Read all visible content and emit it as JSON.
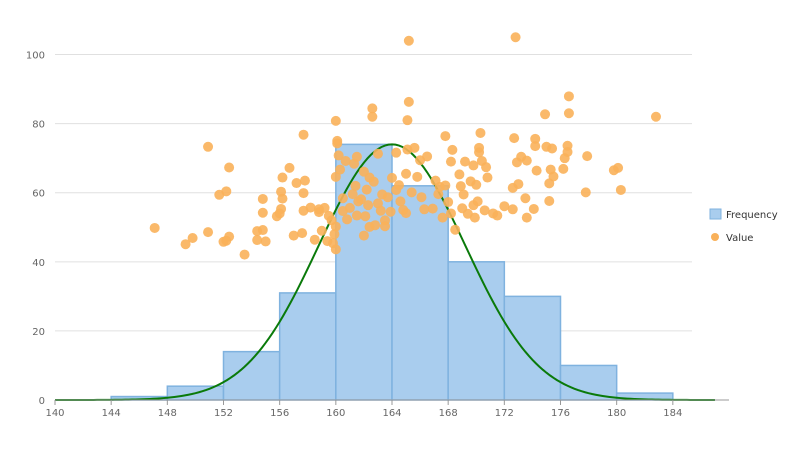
{
  "chart_data": {
    "type": "histogram",
    "title": "",
    "xlabel": "",
    "ylabel": "",
    "xlim": [
      140,
      188
    ],
    "ylim": [
      0,
      110
    ],
    "x_ticks": [
      140,
      144,
      148,
      152,
      156,
      160,
      164,
      168,
      172,
      176,
      180,
      184
    ],
    "y_ticks": [
      0,
      20,
      40,
      60,
      80,
      100
    ],
    "grid": "horizontal",
    "legend_position": "right",
    "legend": [
      {
        "label": "Frequency",
        "kind": "box"
      },
      {
        "label": "Value",
        "kind": "dot"
      }
    ],
    "colors": {
      "bar_fill": "#a9cdee",
      "bar_stroke": "#7fb2df",
      "curve": "#0a7a0a",
      "scatter": "#f9b15a",
      "grid": "#e0e0e0",
      "axis": "#999999"
    },
    "bins": [
      {
        "x0": 144,
        "x1": 148,
        "value": 1
      },
      {
        "x0": 148,
        "x1": 152,
        "value": 4
      },
      {
        "x0": 152,
        "x1": 156,
        "value": 14
      },
      {
        "x0": 156,
        "x1": 160,
        "value": 31
      },
      {
        "x0": 160,
        "x1": 164,
        "value": 74
      },
      {
        "x0": 164,
        "x1": 168,
        "value": 62
      },
      {
        "x0": 168,
        "x1": 172,
        "value": 40
      },
      {
        "x0": 172,
        "x1": 176,
        "value": 30
      },
      {
        "x0": 176,
        "x1": 180,
        "value": 10
      },
      {
        "x0": 180,
        "x1": 184,
        "value": 2
      }
    ],
    "curve": {
      "kind": "normal",
      "mean": 164,
      "sd": 5.2,
      "peak": 74,
      "x_from": 140,
      "x_to": 187
    },
    "scatter": [
      [
        147.1,
        49.8
      ],
      [
        149.3,
        45.1
      ],
      [
        149.8,
        46.9
      ],
      [
        150.9,
        73.3
      ],
      [
        150.9,
        48.6
      ],
      [
        151.7,
        59.4
      ],
      [
        152.0,
        45.8
      ],
      [
        152.2,
        60.4
      ],
      [
        152.4,
        67.3
      ],
      [
        152.4,
        47.3
      ],
      [
        152.2,
        46.1
      ],
      [
        153.5,
        42.1
      ],
      [
        154.4,
        46.3
      ],
      [
        154.4,
        48.9
      ],
      [
        154.8,
        49.2
      ],
      [
        154.8,
        54.2
      ],
      [
        154.8,
        58.2
      ],
      [
        155.0,
        45.9
      ],
      [
        155.8,
        53.2
      ],
      [
        156.0,
        54.0
      ],
      [
        156.1,
        55.3
      ],
      [
        156.2,
        64.4
      ],
      [
        156.2,
        58.3
      ],
      [
        156.1,
        60.3
      ],
      [
        156.7,
        67.2
      ],
      [
        157.0,
        47.6
      ],
      [
        157.2,
        62.8
      ],
      [
        157.6,
        48.3
      ],
      [
        157.8,
        63.5
      ],
      [
        157.7,
        76.8
      ],
      [
        157.7,
        59.9
      ],
      [
        157.7,
        54.8
      ],
      [
        158.2,
        55.7
      ],
      [
        158.5,
        46.4
      ],
      [
        158.8,
        54.4
      ],
      [
        158.8,
        55.2
      ],
      [
        159.0,
        49.0
      ],
      [
        159.2,
        55.6
      ],
      [
        159.4,
        46.0
      ],
      [
        159.5,
        53.3
      ],
      [
        159.7,
        52.0
      ],
      [
        159.8,
        45.4
      ],
      [
        159.9,
        48.0
      ],
      [
        160.0,
        43.6
      ],
      [
        160.0,
        50.2
      ],
      [
        160.0,
        64.6
      ],
      [
        160.1,
        75.0
      ],
      [
        160.1,
        74.3
      ],
      [
        160.0,
        80.8
      ],
      [
        160.2,
        70.8
      ],
      [
        160.3,
        66.7
      ],
      [
        160.5,
        58.4
      ],
      [
        160.5,
        54.7
      ],
      [
        160.7,
        69.2
      ],
      [
        160.8,
        52.3
      ],
      [
        161.0,
        55.6
      ],
      [
        161.2,
        59.6
      ],
      [
        161.3,
        68.4
      ],
      [
        161.4,
        62.0
      ],
      [
        161.5,
        53.4
      ],
      [
        161.5,
        70.4
      ],
      [
        161.6,
        57.5
      ],
      [
        161.8,
        58.1
      ],
      [
        162.0,
        66.1
      ],
      [
        162.0,
        47.6
      ],
      [
        162.1,
        53.2
      ],
      [
        162.2,
        60.9
      ],
      [
        162.3,
        56.4
      ],
      [
        162.4,
        64.4
      ],
      [
        162.4,
        50.1
      ],
      [
        162.6,
        84.4
      ],
      [
        162.6,
        82.0
      ],
      [
        162.7,
        63.2
      ],
      [
        162.8,
        50.6
      ],
      [
        163.0,
        71.3
      ],
      [
        163.0,
        56.9
      ],
      [
        163.2,
        54.8
      ],
      [
        163.3,
        59.5
      ],
      [
        163.5,
        52.0
      ],
      [
        163.5,
        50.3
      ],
      [
        163.7,
        58.7
      ],
      [
        163.9,
        54.5
      ],
      [
        164.0,
        64.3
      ],
      [
        164.3,
        60.8
      ],
      [
        164.3,
        71.6
      ],
      [
        164.5,
        62.2
      ],
      [
        164.6,
        57.5
      ],
      [
        164.8,
        55.0
      ],
      [
        165.0,
        65.5
      ],
      [
        165.0,
        54.1
      ],
      [
        165.1,
        72.5
      ],
      [
        165.1,
        81.0
      ],
      [
        165.2,
        86.3
      ],
      [
        165.2,
        104.0
      ],
      [
        165.4,
        60.1
      ],
      [
        165.6,
        73.0
      ],
      [
        165.8,
        64.6
      ],
      [
        166.0,
        69.4
      ],
      [
        166.1,
        58.7
      ],
      [
        166.3,
        55.2
      ],
      [
        166.5,
        70.5
      ],
      [
        166.9,
        55.4
      ],
      [
        167.1,
        63.5
      ],
      [
        167.3,
        59.6
      ],
      [
        167.4,
        61.7
      ],
      [
        167.6,
        52.8
      ],
      [
        167.8,
        62.1
      ],
      [
        167.8,
        76.4
      ],
      [
        168.0,
        57.3
      ],
      [
        168.2,
        54.0
      ],
      [
        168.2,
        69.0
      ],
      [
        168.3,
        72.4
      ],
      [
        168.5,
        49.3
      ],
      [
        168.8,
        65.3
      ],
      [
        168.9,
        61.9
      ],
      [
        169.0,
        55.5
      ],
      [
        169.1,
        59.5
      ],
      [
        169.2,
        69.0
      ],
      [
        169.4,
        53.9
      ],
      [
        169.6,
        63.3
      ],
      [
        169.8,
        56.4
      ],
      [
        169.8,
        67.9
      ],
      [
        169.9,
        52.8
      ],
      [
        170.0,
        62.3
      ],
      [
        170.1,
        57.5
      ],
      [
        170.2,
        71.7
      ],
      [
        170.2,
        73.0
      ],
      [
        170.3,
        77.3
      ],
      [
        170.4,
        69.2
      ],
      [
        170.6,
        54.9
      ],
      [
        170.7,
        67.4
      ],
      [
        170.8,
        64.4
      ],
      [
        171.2,
        54.0
      ],
      [
        171.5,
        53.4
      ],
      [
        172.0,
        56.1
      ],
      [
        172.6,
        55.2
      ],
      [
        172.6,
        61.4
      ],
      [
        172.7,
        75.8
      ],
      [
        172.8,
        105.0
      ],
      [
        172.9,
        68.8
      ],
      [
        173.0,
        62.5
      ],
      [
        173.2,
        70.4
      ],
      [
        173.5,
        58.4
      ],
      [
        173.6,
        69.3
      ],
      [
        173.6,
        52.8
      ],
      [
        174.1,
        55.3
      ],
      [
        174.2,
        75.6
      ],
      [
        174.2,
        73.5
      ],
      [
        174.3,
        66.4
      ],
      [
        174.9,
        82.7
      ],
      [
        175.0,
        73.3
      ],
      [
        175.2,
        57.6
      ],
      [
        175.2,
        62.7
      ],
      [
        175.3,
        66.7
      ],
      [
        175.4,
        72.8
      ],
      [
        175.5,
        64.7
      ],
      [
        176.2,
        66.9
      ],
      [
        176.3,
        70.0
      ],
      [
        176.5,
        73.6
      ],
      [
        176.5,
        71.8
      ],
      [
        176.6,
        83.0
      ],
      [
        176.6,
        87.9
      ],
      [
        177.8,
        60.1
      ],
      [
        177.9,
        70.6
      ],
      [
        179.8,
        66.5
      ],
      [
        180.1,
        67.2
      ],
      [
        180.3,
        60.8
      ],
      [
        182.8,
        82.0
      ]
    ]
  }
}
